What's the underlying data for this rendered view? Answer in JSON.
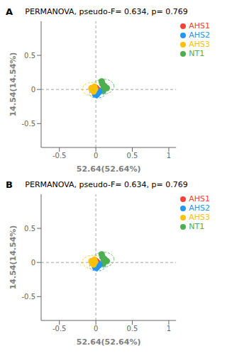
{
  "chart_data": [
    {
      "type": "scatter",
      "title": "PERMANOVA, pseudo-F= 0.634, p= 0.769",
      "annotations": [
        "A"
      ],
      "xlabel": "52.64(52.64%)",
      "ylabel": "14.54(14.54%)",
      "xlim": [
        -0.75,
        1.1
      ],
      "ylim": [
        -0.85,
        1.0
      ],
      "xticks": [
        -0.5,
        0.0,
        0.5,
        1.0
      ],
      "yticks": [
        -0.5,
        0.0,
        0.5
      ],
      "grid": false,
      "legend": "right",
      "series": [
        {
          "name": "NT1",
          "color": "#4caf50",
          "values": [
            [
              0.08,
              0.12
            ],
            [
              0.15,
              0.02
            ],
            [
              0.1,
              -0.02
            ],
            [
              0.12,
              0.05
            ],
            [
              0.09,
              0.08
            ],
            [
              0.11,
              0.03
            ]
          ]
        },
        {
          "name": "AHS1",
          "color": "#f44336",
          "values": [
            [
              -0.02,
              0.01
            ],
            [
              0.01,
              -0.02
            ],
            [
              -0.01,
              0.03
            ],
            [
              0.02,
              0.0
            ],
            [
              -0.03,
              -0.01
            ],
            [
              0.0,
              0.02
            ]
          ]
        },
        {
          "name": "AHS2",
          "color": "#2196f3",
          "values": [
            [
              0.02,
              -0.06
            ],
            [
              0.04,
              -0.04
            ],
            [
              0.01,
              -0.08
            ],
            [
              0.03,
              -0.05
            ],
            [
              -0.01,
              -0.07
            ],
            [
              0.05,
              -0.03
            ]
          ]
        },
        {
          "name": "AHS3",
          "color": "#ffc107",
          "values": [
            [
              -0.05,
              -0.01
            ],
            [
              -0.02,
              0.04
            ],
            [
              -0.06,
              0.02
            ],
            [
              -0.03,
              -0.03
            ],
            [
              -0.04,
              0.0
            ],
            [
              -0.01,
              0.01
            ]
          ]
        }
      ],
      "ellipses": [
        {
          "color": "#4caf50",
          "cx": 0.1,
          "cy": 0.04,
          "w": 0.3,
          "h": 0.22,
          "angle": 5
        },
        {
          "color": "#f44336",
          "cx": -0.005,
          "cy": 0.005,
          "w": 0.14,
          "h": 0.11,
          "angle": 0
        },
        {
          "color": "#2196f3",
          "cx": 0.023,
          "cy": -0.055,
          "w": 0.22,
          "h": 0.14,
          "angle": 5
        },
        {
          "color": "#ffc107",
          "cx": -0.035,
          "cy": 0.005,
          "w": 0.3,
          "h": 0.2,
          "angle": -2
        }
      ]
    },
    {
      "type": "scatter",
      "title": "PERMANOVA, pseudo-F= 0.634, p= 0.769",
      "annotations": [
        "B"
      ],
      "xlabel": "52.64(52.64%)",
      "ylabel": "14.54(14.54%)",
      "xlim": [
        -0.75,
        1.1
      ],
      "ylim": [
        -0.85,
        1.0
      ],
      "xticks": [
        -0.5,
        0.0,
        0.5,
        1.0
      ],
      "yticks": [
        -0.5,
        0.0,
        0.5
      ],
      "grid": false,
      "legend": "right",
      "series": [
        {
          "name": "NT1",
          "color": "#4caf50",
          "values": [
            [
              0.08,
              0.12
            ],
            [
              0.15,
              0.02
            ],
            [
              0.1,
              -0.02
            ],
            [
              0.12,
              0.05
            ],
            [
              0.09,
              0.08
            ],
            [
              0.11,
              0.03
            ]
          ]
        },
        {
          "name": "AHS1",
          "color": "#f44336",
          "values": [
            [
              -0.02,
              0.01
            ],
            [
              0.01,
              -0.02
            ],
            [
              -0.01,
              0.03
            ],
            [
              0.02,
              0.0
            ],
            [
              -0.03,
              -0.01
            ],
            [
              0.0,
              0.02
            ]
          ]
        },
        {
          "name": "AHS2",
          "color": "#2196f3",
          "values": [
            [
              0.02,
              -0.06
            ],
            [
              0.04,
              -0.04
            ],
            [
              0.01,
              -0.08
            ],
            [
              0.03,
              -0.05
            ],
            [
              -0.01,
              -0.07
            ],
            [
              0.05,
              -0.03
            ]
          ]
        },
        {
          "name": "AHS3",
          "color": "#ffc107",
          "values": [
            [
              -0.05,
              -0.01
            ],
            [
              -0.02,
              0.04
            ],
            [
              -0.06,
              0.02
            ],
            [
              -0.03,
              -0.03
            ],
            [
              -0.04,
              0.0
            ],
            [
              -0.01,
              0.01
            ]
          ]
        }
      ],
      "ellipses": [
        {
          "color": "#4caf50",
          "cx": 0.1,
          "cy": 0.04,
          "w": 0.3,
          "h": 0.22,
          "angle": 5
        },
        {
          "color": "#f44336",
          "cx": -0.005,
          "cy": 0.005,
          "w": 0.14,
          "h": 0.11,
          "angle": 0
        },
        {
          "color": "#2196f3",
          "cx": 0.023,
          "cy": -0.055,
          "w": 0.22,
          "h": 0.14,
          "angle": 5
        },
        {
          "color": "#ffc107",
          "cx": -0.035,
          "cy": 0.005,
          "w": 0.3,
          "h": 0.2,
          "angle": -2
        }
      ]
    }
  ]
}
